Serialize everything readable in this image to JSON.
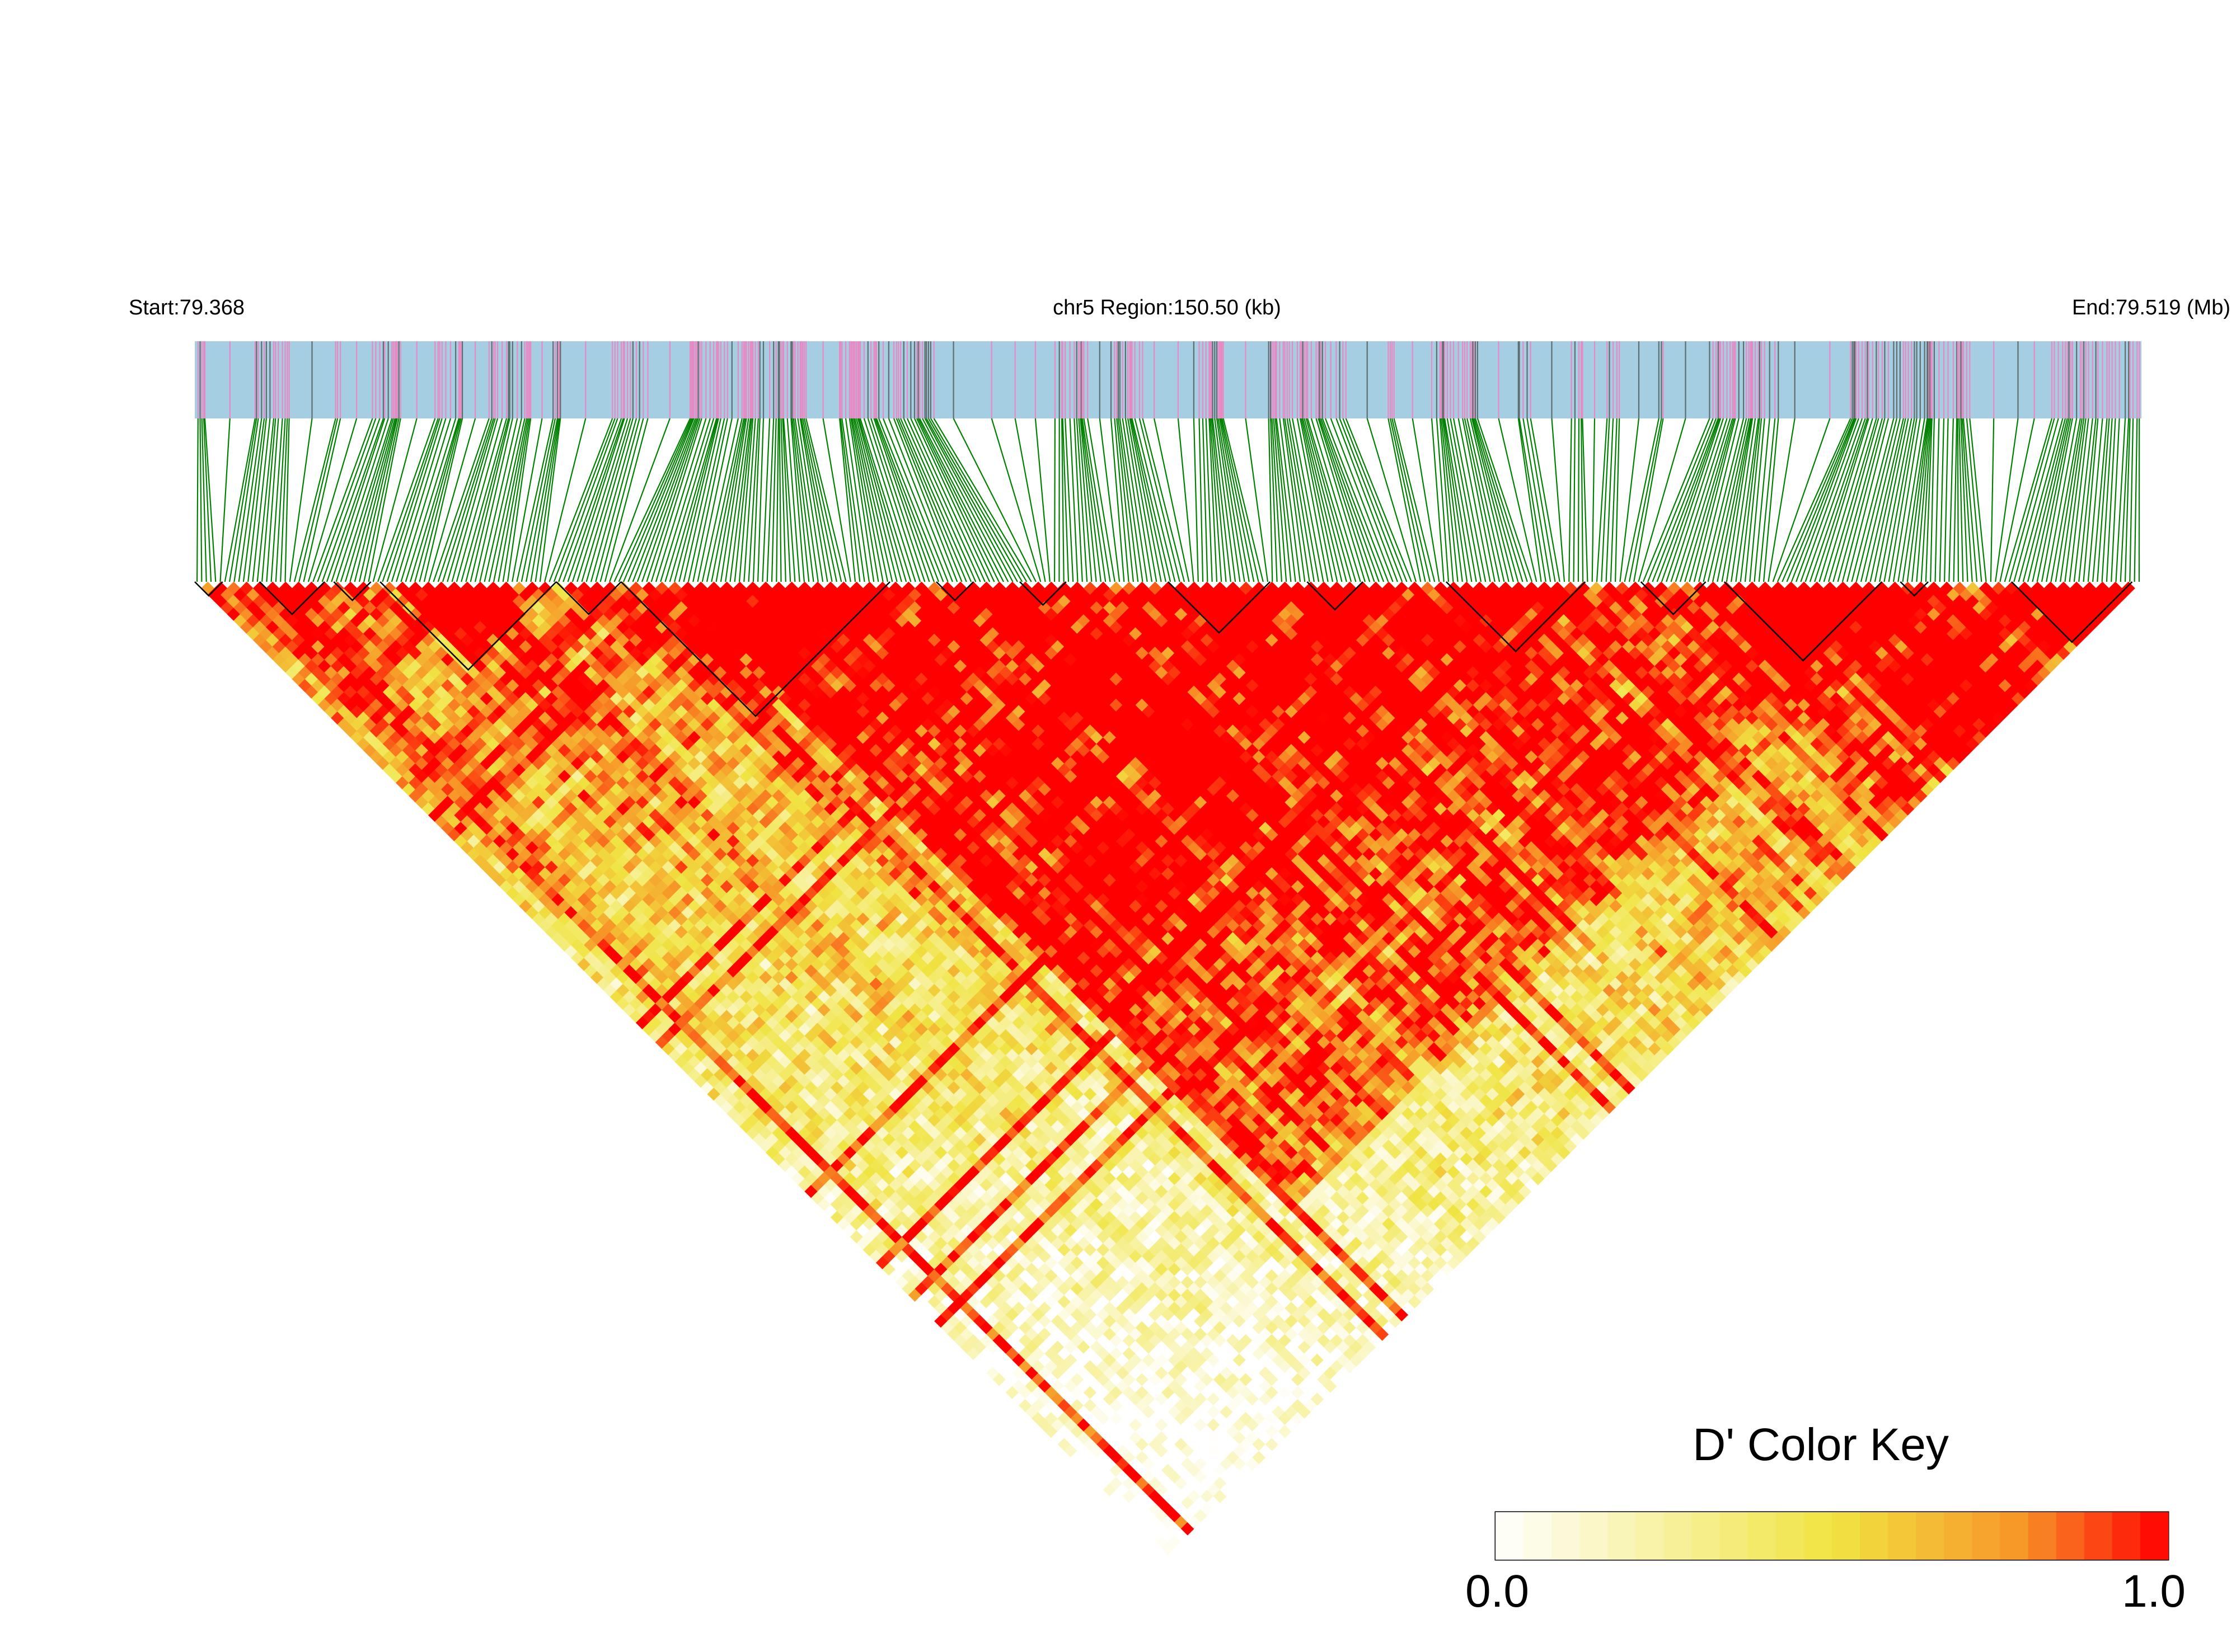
{
  "chart_data": {
    "type": "heatmap",
    "subtype": "linkage-disequilibrium-triangle",
    "chromosome": "chr5",
    "start_mb": 79.368,
    "end_mb": 79.519,
    "region_kb": 150.5,
    "header": {
      "start_label": "Start:79.368",
      "region_label": "chr5 Region:150.50 (kb)",
      "end_label": "End:79.519 (Mb)"
    },
    "snp_count_approx": 420,
    "ld_blocks_approx": [
      [
        0,
        6
      ],
      [
        14,
        28
      ],
      [
        30,
        38
      ],
      [
        40,
        78
      ],
      [
        78,
        92
      ],
      [
        92,
        150
      ],
      [
        160,
        168
      ],
      [
        178,
        188
      ],
      [
        210,
        232
      ],
      [
        240,
        252
      ],
      [
        270,
        300
      ],
      [
        312,
        326
      ],
      [
        330,
        364
      ],
      [
        368,
        374
      ],
      [
        392,
        418
      ]
    ],
    "value_metric": "D'",
    "value_range": [
      0.0,
      1.0
    ],
    "legend": {
      "title": "D' Color Key",
      "min_label": "0.0",
      "max_label": "1.0",
      "placement": "bottom-right"
    },
    "colors": {
      "track_background": "#a6cee3",
      "variant_tick_pink": "#e78ac3",
      "variant_tick_gray": "#5f6f6f",
      "connector_lines": "#008000",
      "low": "#ffffff",
      "mid": "#f0e442",
      "high": "#ff0000"
    }
  }
}
